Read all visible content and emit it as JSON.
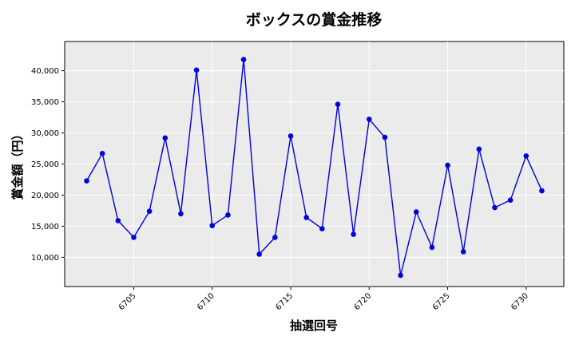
{
  "chart_data": {
    "type": "line",
    "title": "ボックスの賞金推移",
    "xlabel": "抽選回号",
    "ylabel": "賞金額（円）",
    "xlim": [
      6700.6,
      6732.4
    ],
    "ylim": [
      5300,
      44700
    ],
    "xticks": [
      6705,
      6710,
      6715,
      6720,
      6725,
      6730
    ],
    "yticks": [
      10000,
      15000,
      20000,
      25000,
      30000,
      35000,
      40000
    ],
    "ytick_labels": [
      "10,000",
      "15,000",
      "20,000",
      "25,000",
      "30,000",
      "35,000",
      "40,000"
    ],
    "grid": true,
    "x": [
      6702,
      6703,
      6704,
      6705,
      6706,
      6707,
      6708,
      6709,
      6710,
      6711,
      6712,
      6713,
      6714,
      6715,
      6716,
      6717,
      6718,
      6719,
      6720,
      6721,
      6722,
      6723,
      6724,
      6725,
      6726,
      6727,
      6728,
      6729,
      6730,
      6731
    ],
    "series": [
      {
        "color": "#0000dd",
        "values": [
          22300,
          26700,
          15900,
          13200,
          17400,
          29200,
          17000,
          40100,
          15100,
          16800,
          41800,
          10500,
          13200,
          29500,
          16400,
          14600,
          34600,
          13700,
          32200,
          29300,
          7100,
          17300,
          11600,
          24800,
          10900,
          27400,
          18000,
          19200,
          26300,
          20700
        ]
      }
    ]
  }
}
